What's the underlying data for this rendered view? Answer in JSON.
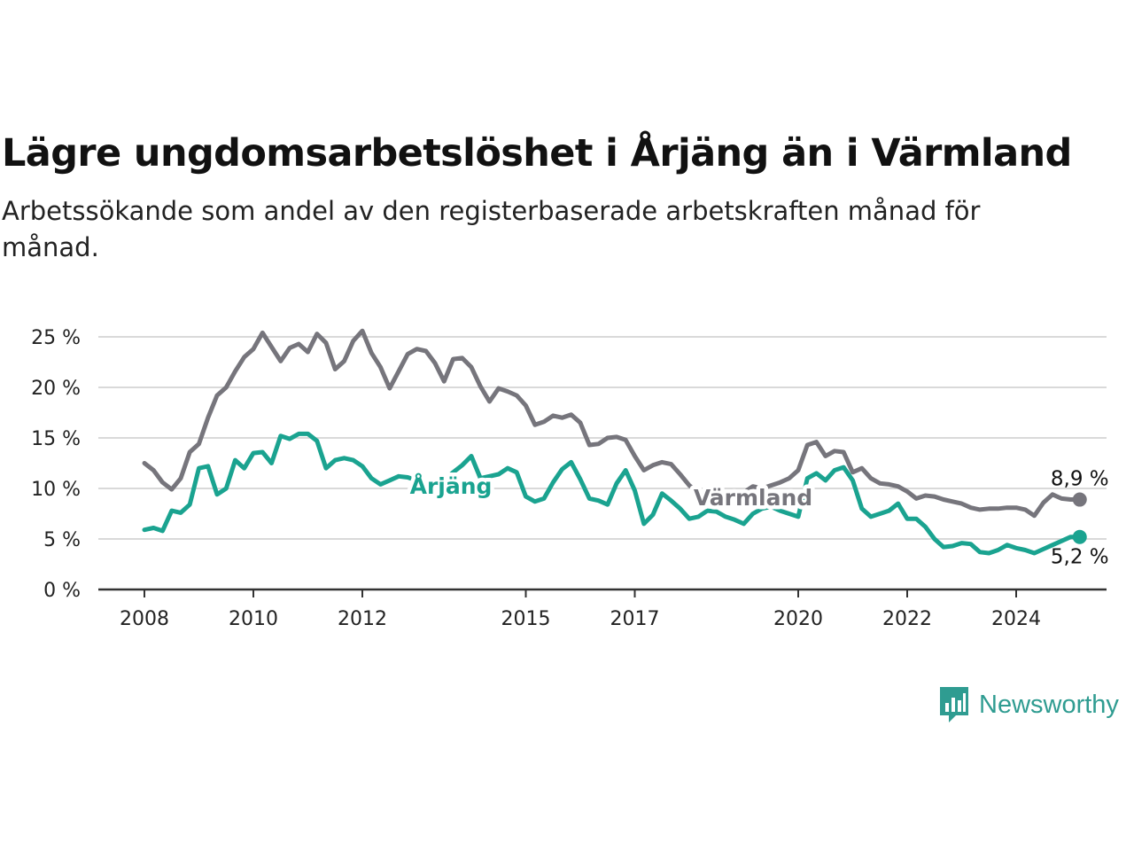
{
  "chart_data": {
    "type": "line",
    "title": "Lägre ungdomsarbetslöshet i Årjäng än i Värmland",
    "subtitle": "Arbetssökande som andel av den registerbaserade arbetskraften månad för månad.",
    "y_ticks": [
      "0 %",
      "5 %",
      "10 %",
      "15 %",
      "20 %",
      "25 %"
    ],
    "x_ticks": [
      "2008",
      "2010",
      "2012",
      "2015",
      "2017",
      "2020",
      "2022",
      "2024"
    ],
    "ylim": [
      0,
      25
    ],
    "xlim": [
      "2008-01",
      "2025-06"
    ],
    "grid": true,
    "series": [
      {
        "name": "Värmland",
        "color": "#76757c",
        "end_label": "8,9 %",
        "x": [
          "2008-01",
          "2008-03",
          "2008-05",
          "2008-07",
          "2008-09",
          "2008-11",
          "2009-01",
          "2009-03",
          "2009-05",
          "2009-07",
          "2009-09",
          "2009-11",
          "2010-01",
          "2010-03",
          "2010-05",
          "2010-07",
          "2010-09",
          "2010-11",
          "2011-01",
          "2011-03",
          "2011-05",
          "2011-07",
          "2011-09",
          "2011-11",
          "2012-01",
          "2012-03",
          "2012-05",
          "2012-07",
          "2012-09",
          "2012-11",
          "2013-01",
          "2013-03",
          "2013-05",
          "2013-07",
          "2013-09",
          "2013-11",
          "2014-01",
          "2014-03",
          "2014-05",
          "2014-07",
          "2014-09",
          "2014-11",
          "2015-01",
          "2015-03",
          "2015-05",
          "2015-07",
          "2015-09",
          "2015-11",
          "2016-01",
          "2016-03",
          "2016-05",
          "2016-07",
          "2016-09",
          "2016-11",
          "2017-01",
          "2017-03",
          "2017-05",
          "2017-07",
          "2017-09",
          "2017-11",
          "2018-01",
          "2018-03",
          "2018-05",
          "2018-07",
          "2018-09",
          "2018-11",
          "2019-01",
          "2019-03",
          "2019-05",
          "2019-07",
          "2019-09",
          "2019-11",
          "2020-01",
          "2020-03",
          "2020-05",
          "2020-07",
          "2020-09",
          "2020-11",
          "2021-01",
          "2021-03",
          "2021-05",
          "2021-07",
          "2021-09",
          "2021-11",
          "2022-01",
          "2022-03",
          "2022-05",
          "2022-07",
          "2022-09",
          "2022-11",
          "2023-01",
          "2023-03",
          "2023-05",
          "2023-07",
          "2023-09",
          "2023-11",
          "2024-01",
          "2024-03",
          "2024-05",
          "2024-07",
          "2024-09",
          "2024-11",
          "2025-01",
          "2025-03"
        ],
        "values": [
          12.5,
          11.8,
          10.6,
          9.9,
          11.0,
          13.6,
          14.4,
          17.0,
          19.2,
          20.0,
          21.6,
          23.0,
          23.8,
          25.4,
          24.0,
          22.6,
          23.9,
          24.3,
          23.5,
          25.3,
          24.4,
          21.8,
          22.6,
          24.6,
          25.6,
          23.4,
          22.0,
          19.9,
          21.6,
          23.3,
          23.8,
          23.6,
          22.4,
          20.6,
          22.8,
          22.9,
          22.0,
          20.1,
          18.6,
          19.9,
          19.6,
          19.2,
          18.2,
          16.3,
          16.6,
          17.2,
          17.0,
          17.3,
          16.5,
          14.3,
          14.4,
          15.0,
          15.1,
          14.8,
          13.2,
          11.8,
          12.3,
          12.6,
          12.4,
          11.4,
          10.3,
          9.6,
          9.0,
          8.8,
          9.2,
          9.6,
          9.6,
          10.2,
          10.0,
          10.3,
          10.6,
          11.0,
          11.8,
          14.3,
          14.6,
          13.2,
          13.7,
          13.6,
          11.6,
          12.0,
          11.0,
          10.5,
          10.4,
          10.2,
          9.7,
          9.0,
          9.3,
          9.2,
          8.9,
          8.7,
          8.5,
          8.1,
          7.9,
          8.0,
          8.0,
          8.1,
          8.1,
          7.9,
          7.3,
          8.6,
          9.4,
          9.0,
          8.9,
          8.9
        ]
      },
      {
        "name": "Årjäng",
        "color": "#1aa390",
        "end_label": "5,2 %",
        "x": [
          "2008-01",
          "2008-03",
          "2008-05",
          "2008-07",
          "2008-09",
          "2008-11",
          "2009-01",
          "2009-03",
          "2009-05",
          "2009-07",
          "2009-09",
          "2009-11",
          "2010-01",
          "2010-03",
          "2010-05",
          "2010-07",
          "2010-09",
          "2010-11",
          "2011-01",
          "2011-03",
          "2011-05",
          "2011-07",
          "2011-09",
          "2011-11",
          "2012-01",
          "2012-03",
          "2012-05",
          "2012-07",
          "2012-09",
          "2012-11",
          "2013-01",
          "2013-03",
          "2013-05",
          "2013-07",
          "2013-09",
          "2013-11",
          "2014-01",
          "2014-03",
          "2014-05",
          "2014-07",
          "2014-09",
          "2014-11",
          "2015-01",
          "2015-03",
          "2015-05",
          "2015-07",
          "2015-09",
          "2015-11",
          "2016-01",
          "2016-03",
          "2016-05",
          "2016-07",
          "2016-09",
          "2016-11",
          "2017-01",
          "2017-03",
          "2017-05",
          "2017-07",
          "2017-09",
          "2017-11",
          "2018-01",
          "2018-03",
          "2018-05",
          "2018-07",
          "2018-09",
          "2018-11",
          "2019-01",
          "2019-03",
          "2019-05",
          "2019-07",
          "2019-09",
          "2019-11",
          "2020-01",
          "2020-03",
          "2020-05",
          "2020-07",
          "2020-09",
          "2020-11",
          "2021-01",
          "2021-03",
          "2021-05",
          "2021-07",
          "2021-09",
          "2021-11",
          "2022-01",
          "2022-03",
          "2022-05",
          "2022-07",
          "2022-09",
          "2022-11",
          "2023-01",
          "2023-03",
          "2023-05",
          "2023-07",
          "2023-09",
          "2023-11",
          "2024-01",
          "2024-03",
          "2024-05",
          "2024-07",
          "2024-09",
          "2024-11",
          "2025-01",
          "2025-03"
        ],
        "values": [
          5.9,
          6.1,
          5.8,
          7.8,
          7.6,
          8.4,
          12.0,
          12.2,
          9.4,
          10.0,
          12.8,
          12.0,
          13.5,
          13.6,
          12.5,
          15.2,
          14.9,
          15.4,
          15.4,
          14.7,
          12.0,
          12.8,
          13.0,
          12.8,
          12.2,
          11.0,
          10.4,
          10.8,
          11.2,
          11.1,
          10.8,
          9.8,
          9.5,
          10.8,
          11.6,
          12.3,
          13.2,
          11.0,
          11.2,
          11.4,
          12.0,
          11.6,
          9.2,
          8.7,
          9.0,
          10.6,
          11.9,
          12.6,
          10.9,
          9.0,
          8.8,
          8.4,
          10.5,
          11.8,
          9.8,
          6.5,
          7.4,
          9.5,
          8.8,
          8.0,
          7.0,
          7.2,
          7.8,
          7.7,
          7.2,
          6.9,
          6.5,
          7.5,
          8.0,
          8.2,
          7.8,
          7.5,
          7.2,
          11.0,
          11.5,
          10.8,
          11.8,
          12.1,
          10.8,
          8.0,
          7.2,
          7.5,
          7.8,
          8.5,
          7.0,
          7.0,
          6.2,
          5.0,
          4.2,
          4.3,
          4.6,
          4.5,
          3.7,
          3.6,
          3.9,
          4.4,
          4.1,
          3.9,
          3.6,
          4.0,
          4.4,
          4.8,
          5.2,
          5.2
        ]
      }
    ]
  },
  "brand": {
    "name": "Newsworthy",
    "icon": "newsworthy-logo-icon",
    "color": "#2f9c91"
  }
}
